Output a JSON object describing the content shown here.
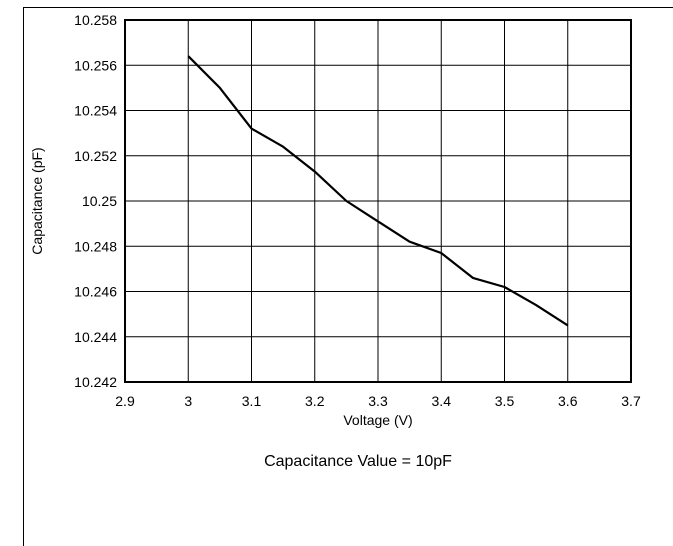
{
  "chart_data": {
    "type": "line",
    "title": "",
    "caption": "Capacitance Value = 10pF",
    "xlabel": "Voltage (V)",
    "ylabel": "Capacitance (pF)",
    "xlim": [
      2.9,
      3.7
    ],
    "ylim": [
      10.242,
      10.258
    ],
    "xticks": [
      "2.9",
      "3",
      "3.1",
      "3.2",
      "3.3",
      "3.4",
      "3.5",
      "3.6",
      "3.7"
    ],
    "yticks": [
      "10.242",
      "10.244",
      "10.246",
      "10.248",
      "10.25",
      "10.252",
      "10.254",
      "10.256",
      "10.258"
    ],
    "grid": true,
    "series": [
      {
        "color": "#000000",
        "x": [
          3.0,
          3.05,
          3.1,
          3.15,
          3.2,
          3.25,
          3.3,
          3.35,
          3.4,
          3.45,
          3.5,
          3.55,
          3.6
        ],
        "y": [
          10.2564,
          10.255,
          10.2532,
          10.2524,
          10.2513,
          10.25,
          10.2491,
          10.2482,
          10.2477,
          10.2466,
          10.2462,
          10.2454,
          10.2445
        ]
      }
    ]
  }
}
